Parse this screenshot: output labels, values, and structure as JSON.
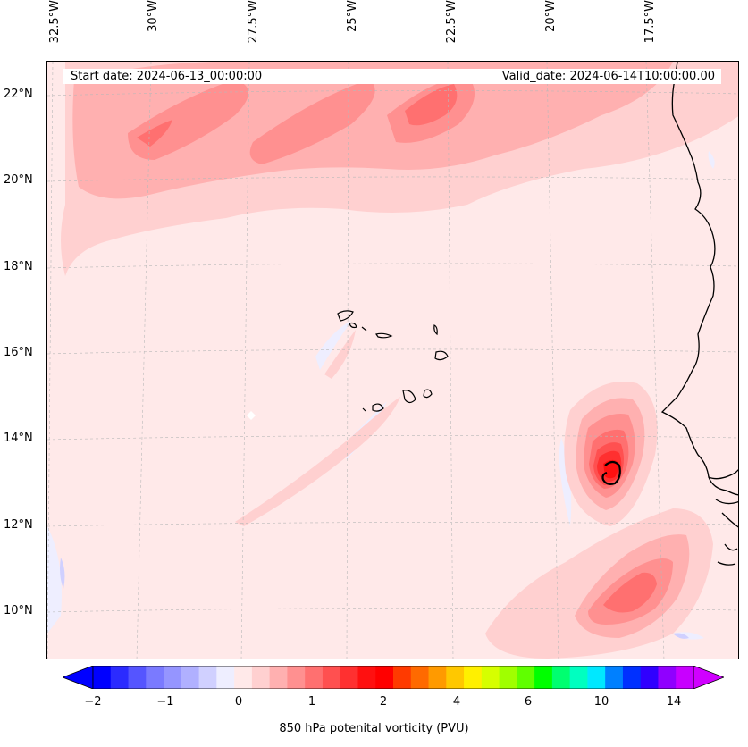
{
  "map": {
    "lon_labels": [
      "32.5°W",
      "30°W",
      "27.5°W",
      "25°W",
      "22.5°W",
      "20°W",
      "17.5°W"
    ],
    "lat_labels": [
      "22°N",
      "20°N",
      "18°N",
      "16°N",
      "14°N",
      "12°N",
      "10°N"
    ],
    "start_text": "Start date: 2024-06-13_00:00:00",
    "valid_text": "Valid_date: 2024-06-14T10:00:00.00"
  },
  "colorbar": {
    "label": "850 hPa potenital vorticity (PVU)",
    "ticks": [
      "−2",
      "−1",
      "0",
      "1",
      "2",
      "4",
      "6",
      "10",
      "14"
    ],
    "colors": [
      "#0000ff",
      "#2b2bff",
      "#5555ff",
      "#7a7aff",
      "#9595ff",
      "#b0b0ff",
      "#d0d0ff",
      "#eeeeff",
      "#ffe9e9",
      "#ffd0d0",
      "#ffb0b0",
      "#ff9090",
      "#ff7070",
      "#ff5050",
      "#ff3030",
      "#ff1010",
      "#ff0000",
      "#ff3a00",
      "#ff6a00",
      "#ff9a00",
      "#ffc800",
      "#fff000",
      "#d6ff00",
      "#a0ff00",
      "#60ff00",
      "#00ff00",
      "#00ff70",
      "#00ffc0",
      "#00e8ff",
      "#0080ff",
      "#0030ff",
      "#3000ff",
      "#9000ff",
      "#c800ff"
    ],
    "under_color": "#0000ff",
    "over_color": "#d000ff"
  }
}
